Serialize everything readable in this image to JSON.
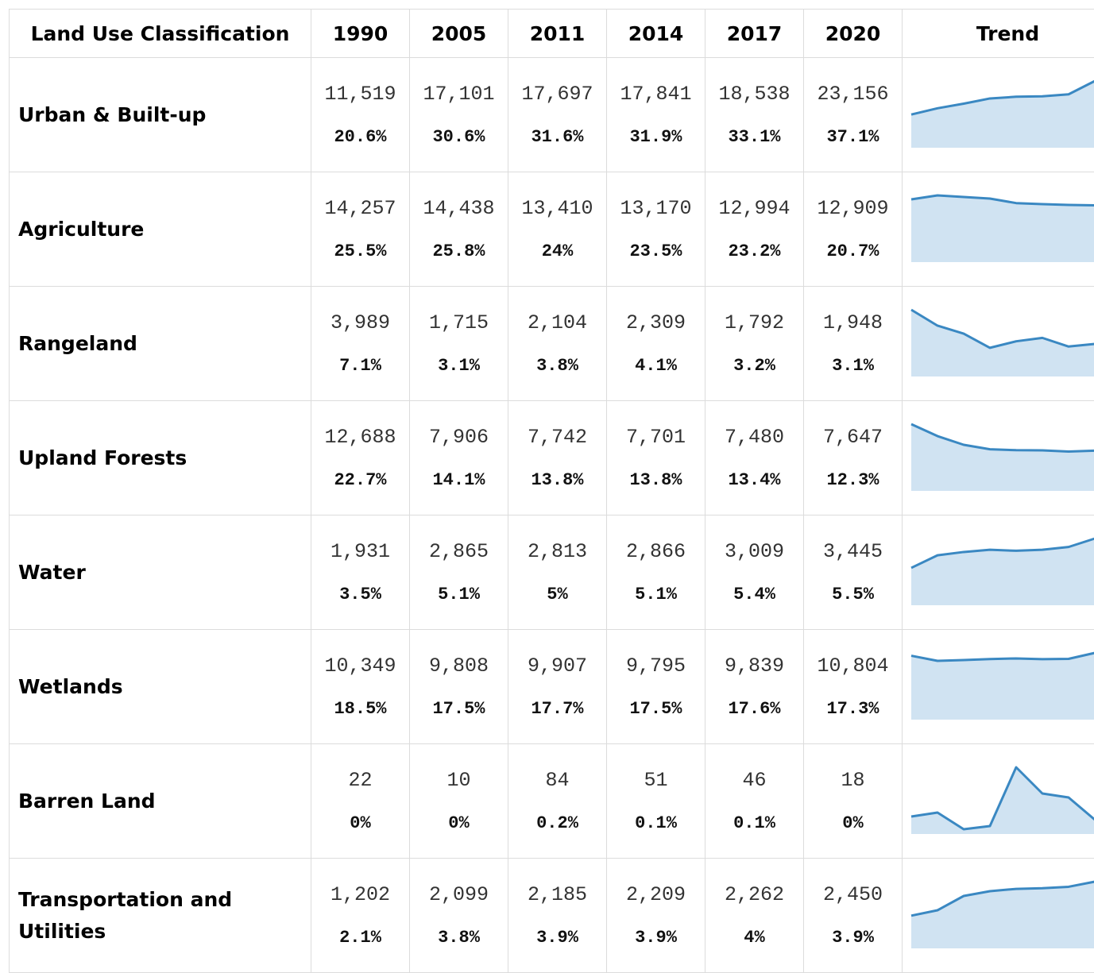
{
  "table": {
    "header": [
      "Land Use Classification",
      "1990",
      "2005",
      "2011",
      "2014",
      "2017",
      "2020",
      "Trend"
    ],
    "rows": [
      {
        "label": "Urban & Built-up",
        "values": [
          "11,519",
          "17,101",
          "17,697",
          "17,841",
          "18,538",
          "23,156"
        ],
        "percents": [
          "20.6%",
          "30.6%",
          "31.6%",
          "31.9%",
          "33.1%",
          "37.1%"
        ],
        "trend": [
          11519,
          13700,
          15300,
          17101,
          17697,
          17841,
          18538,
          23156
        ]
      },
      {
        "label": "Agriculture",
        "values": [
          "14,257",
          "14,438",
          "13,410",
          "13,170",
          "12,994",
          "12,909"
        ],
        "percents": [
          "25.5%",
          "25.8%",
          "24%",
          "23.5%",
          "23.2%",
          "20.7%"
        ],
        "trend": [
          14257,
          15160,
          14800,
          14438,
          13410,
          13170,
          12994,
          12909
        ]
      },
      {
        "label": "Rangeland",
        "values": [
          "3,989",
          "1,715",
          "2,104",
          "2,309",
          "1,792",
          "1,948"
        ],
        "percents": [
          "7.1%",
          "3.1%",
          "3.8%",
          "4.1%",
          "3.2%",
          "3.1%"
        ],
        "trend": [
          3989,
          3040,
          2560,
          1715,
          2104,
          2309,
          1792,
          1948
        ]
      },
      {
        "label": "Upland Forests",
        "values": [
          "12,688",
          "7,906",
          "7,742",
          "7,701",
          "7,480",
          "7,647"
        ],
        "percents": [
          "22.7%",
          "14.1%",
          "13.8%",
          "13.8%",
          "13.4%",
          "12.3%"
        ],
        "trend": [
          12688,
          10420,
          8760,
          7906,
          7742,
          7701,
          7480,
          7647
        ]
      },
      {
        "label": "Water",
        "values": [
          "1,931",
          "2,865",
          "2,813",
          "2,866",
          "3,009",
          "3,445"
        ],
        "percents": [
          "3.5%",
          "5.1%",
          "5%",
          "5.1%",
          "5.4%",
          "5.5%"
        ],
        "trend": [
          1931,
          2580,
          2750,
          2865,
          2813,
          2866,
          3009,
          3445
        ]
      },
      {
        "label": "Wetlands",
        "values": [
          "10,349",
          "9,808",
          "9,907",
          "9,795",
          "9,839",
          "10,804"
        ],
        "percents": [
          "18.5%",
          "17.5%",
          "17.7%",
          "17.5%",
          "17.6%",
          "17.3%"
        ],
        "trend": [
          10349,
          9520,
          9650,
          9808,
          9907,
          9795,
          9839,
          10804
        ]
      },
      {
        "label": "Barren Land",
        "values": [
          "22",
          "10",
          "84",
          "51",
          "46",
          "18"
        ],
        "percents": [
          "0%",
          "0%",
          "0.2%",
          "0.1%",
          "0.1%",
          "0%"
        ],
        "trend": [
          22,
          27,
          6,
          10,
          84,
          51,
          46,
          18
        ]
      },
      {
        "label": "Transportation and Utilities",
        "values": [
          "1,202",
          "2,099",
          "2,185",
          "2,209",
          "2,262",
          "2,450"
        ],
        "percents": [
          "2.1%",
          "3.8%",
          "3.9%",
          "3.9%",
          "4%",
          "3.9%"
        ],
        "trend": [
          1202,
          1400,
          1925,
          2099,
          2185,
          2209,
          2262,
          2450
        ]
      }
    ]
  }
}
